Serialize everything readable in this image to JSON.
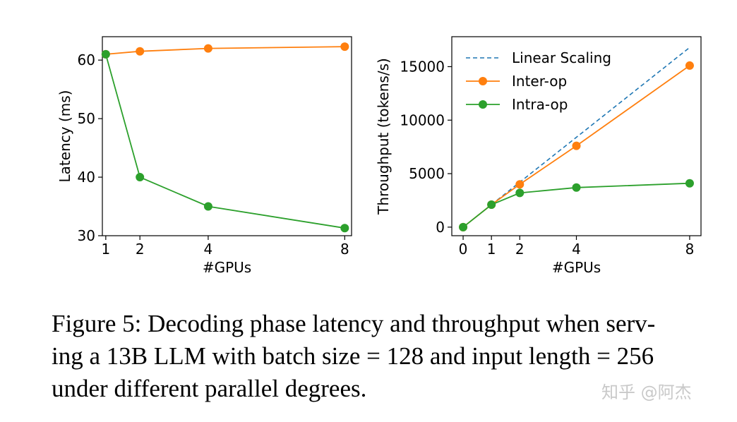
{
  "colors": {
    "inter_op": "#ff7f0e",
    "intra_op": "#2ca02c",
    "linear": "#1f77b4"
  },
  "chart_data": [
    {
      "type": "line",
      "title": "",
      "xlabel": "#GPUs",
      "ylabel": "Latency (ms)",
      "x_ticks": [
        1,
        2,
        4,
        8
      ],
      "y_ticks": [
        30,
        40,
        50,
        60
      ],
      "xlim": [
        0.9,
        8.2
      ],
      "ylim": [
        30,
        64
      ],
      "series": [
        {
          "name": "Inter-op",
          "x": [
            1,
            2,
            4,
            8
          ],
          "y": [
            61.0,
            61.5,
            62.0,
            62.3
          ]
        },
        {
          "name": "Intra-op",
          "x": [
            1,
            2,
            4,
            8
          ],
          "y": [
            61.0,
            40.0,
            35.0,
            31.3
          ]
        }
      ]
    },
    {
      "type": "line",
      "title": "",
      "xlabel": "#GPUs",
      "ylabel": "Throughput (tokens/s)",
      "x_ticks": [
        0,
        1,
        2,
        4,
        8
      ],
      "y_ticks": [
        0,
        5000,
        10000,
        15000
      ],
      "xlim": [
        -0.4,
        8.4
      ],
      "ylim": [
        -800,
        17800
      ],
      "legend": [
        "Linear Scaling",
        "Inter-op",
        "Intra-op"
      ],
      "legend_position": "top-left",
      "series": [
        {
          "name": "Linear Scaling",
          "style": "dashed",
          "x": [
            1,
            8
          ],
          "y": [
            2100,
            16800
          ]
        },
        {
          "name": "Inter-op",
          "x": [
            0,
            1,
            2,
            4,
            8
          ],
          "y": [
            0,
            2100,
            4000,
            7600,
            15100
          ]
        },
        {
          "name": "Intra-op",
          "x": [
            0,
            1,
            2,
            4,
            8
          ],
          "y": [
            0,
            2100,
            3200,
            3700,
            4100
          ]
        }
      ]
    }
  ],
  "caption": {
    "line1": "Figure 5: Decoding phase latency and throughput when serv-",
    "line2": "ing a 13B LLM with batch size = 128 and input length = 256",
    "line3": "under different parallel degrees."
  },
  "watermark": "知乎 @阿杰"
}
